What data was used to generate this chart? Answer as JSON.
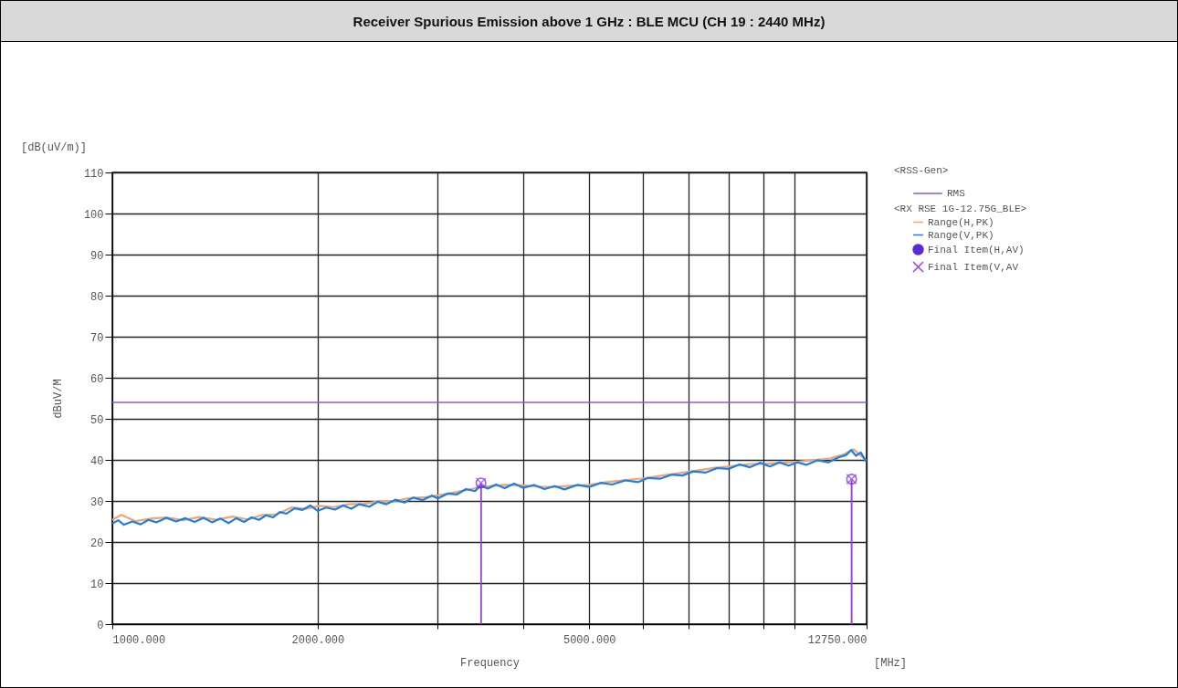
{
  "chart_data": {
    "type": "line",
    "title": "Receiver Spurious Emission above 1 GHz : BLE MCU (CH 19 : 2440 MHz)",
    "xlabel": "Frequency",
    "ylabel": "dBuV/M",
    "legend_title": "<RX RSE 1G-12.75G_BLE>",
    "annotations": [
      "[dB(uV/m)]",
      "[MHz]",
      "<RSS-Gen>"
    ],
    "log": "x",
    "grid": true,
    "legend": "right",
    "xlim": [
      1000,
      12750
    ],
    "ylim": [
      0,
      110
    ],
    "xticks": [
      {
        "value": 1000,
        "label": "1000.000"
      },
      {
        "value": 2000,
        "label": "2000.000"
      },
      {
        "value": 3000,
        "label": null
      },
      {
        "value": 4000,
        "label": null
      },
      {
        "value": 5000,
        "label": "5000.000"
      },
      {
        "value": 6000,
        "label": null
      },
      {
        "value": 7000,
        "label": null
      },
      {
        "value": 8000,
        "label": null
      },
      {
        "value": 9000,
        "label": null
      },
      {
        "value": 10000,
        "label": null
      },
      {
        "value": 12750,
        "label": "12750.000"
      }
    ],
    "yticks": [
      0,
      10,
      20,
      30,
      40,
      50,
      60,
      70,
      80,
      90,
      100,
      110
    ],
    "ref_lines": [
      {
        "axis": "y",
        "value": 54,
        "label": "RMS",
        "color": "#8e5ccf"
      }
    ],
    "series": [
      {
        "name": "Range(H,PK)",
        "color": "#f4a46c",
        "x": [
          1000,
          1030,
          1080,
          1140,
          1200,
          1270,
          1340,
          1420,
          1500,
          1580,
          1660,
          1740,
          1830,
          1920,
          2010,
          2110,
          2220,
          2340,
          2460,
          2590,
          2730,
          2880,
          3030,
          3200,
          3380,
          3560,
          3760,
          3980,
          4200,
          4450,
          4700,
          5000,
          5300,
          5650,
          6000,
          6400,
          6800,
          7200,
          7650,
          8100,
          8600,
          9100,
          9600,
          10150,
          10700,
          11250,
          11800,
          12200,
          12750
        ],
        "values": [
          25.4,
          26.6,
          25.1,
          25.7,
          26.0,
          25.3,
          26.1,
          25.4,
          26.2,
          25.5,
          26.6,
          26.7,
          28.4,
          28.1,
          28.8,
          28.5,
          29.2,
          29.3,
          29.9,
          30.0,
          30.7,
          30.9,
          31.5,
          32.2,
          33.0,
          33.6,
          33.9,
          33.8,
          33.5,
          33.4,
          33.7,
          33.9,
          34.6,
          35.1,
          35.5,
          36.2,
          36.8,
          37.4,
          38.1,
          38.5,
          39.0,
          39.1,
          39.3,
          39.6,
          40.0,
          40.3,
          41.3,
          42.6,
          39.8
        ]
      },
      {
        "name": "Range(V,PK)",
        "color": "#1a7fe8",
        "x": [
          1000,
          1020,
          1040,
          1070,
          1100,
          1130,
          1160,
          1200,
          1240,
          1280,
          1320,
          1360,
          1400,
          1440,
          1480,
          1520,
          1560,
          1600,
          1640,
          1680,
          1720,
          1760,
          1800,
          1850,
          1900,
          1950,
          2000,
          2060,
          2120,
          2180,
          2240,
          2300,
          2380,
          2450,
          2520,
          2600,
          2680,
          2760,
          2850,
          2940,
          3000,
          3100,
          3200,
          3300,
          3400,
          3470,
          3550,
          3650,
          3760,
          3880,
          4000,
          4150,
          4300,
          4450,
          4600,
          4800,
          5000,
          5200,
          5400,
          5650,
          5900,
          6100,
          6350,
          6600,
          6850,
          7100,
          7400,
          7700,
          8000,
          8300,
          8600,
          8900,
          9200,
          9500,
          9800,
          10100,
          10400,
          10800,
          11200,
          11600,
          11900,
          12100,
          12300,
          12500,
          12750
        ],
        "values": [
          24.5,
          25.3,
          24.2,
          25.0,
          24.3,
          25.4,
          24.8,
          25.9,
          25.0,
          25.8,
          24.9,
          25.9,
          24.8,
          25.7,
          24.6,
          25.8,
          24.9,
          26.0,
          25.4,
          26.5,
          26.0,
          27.3,
          26.9,
          28.2,
          27.8,
          28.9,
          27.6,
          28.4,
          27.9,
          28.9,
          28.1,
          29.2,
          28.6,
          29.8,
          29.2,
          30.3,
          29.6,
          30.8,
          30.2,
          31.3,
          30.6,
          31.8,
          31.6,
          32.9,
          32.4,
          33.8,
          33.0,
          34.0,
          33.1,
          34.2,
          33.2,
          33.9,
          32.9,
          33.6,
          32.8,
          33.9,
          33.4,
          34.4,
          34.0,
          35.0,
          34.6,
          35.6,
          35.4,
          36.4,
          36.2,
          37.2,
          36.9,
          38.0,
          37.8,
          38.9,
          38.2,
          39.3,
          38.4,
          39.4,
          38.6,
          39.4,
          38.8,
          39.9,
          39.4,
          40.6,
          41.2,
          42.4,
          41.0,
          41.8,
          39.4
        ]
      },
      {
        "name": "Final Item(H,AV)",
        "type": "lollipop",
        "marker": "circle",
        "color": "#5a2bd6",
        "x": [
          3470,
          12120
        ],
        "values": [
          34.4,
          35.3
        ]
      },
      {
        "name": "Final Item(V,AV",
        "type": "lollipop",
        "marker": "cross",
        "color": "#a23fe6",
        "x": [
          3470,
          12120
        ],
        "values": [
          34.4,
          35.3
        ]
      }
    ]
  }
}
